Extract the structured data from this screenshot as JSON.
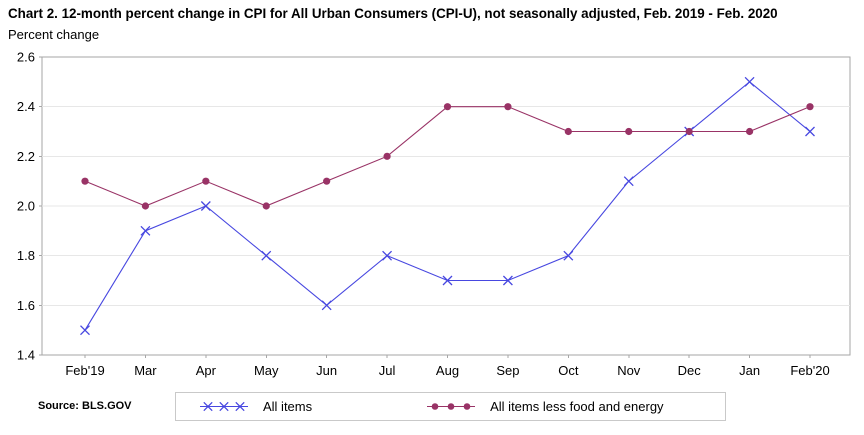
{
  "title": "Chart 2. 12-month percent change in CPI for All Urban Consumers (CPI-U), not seasonally adjusted, Feb. 2019 - Feb. 2020",
  "subtitle": "Percent change",
  "source_label": "Source: BLS.GOV",
  "colors": {
    "all_items": "#4747e0",
    "all_items_less_food_energy": "#993366",
    "gridline": "#e7e7e7",
    "plot_border": "#a6a6a6",
    "tick": "#a6a6a6",
    "text": "#000000",
    "legend_border": "#c9c9c9"
  },
  "chart_data": {
    "type": "line",
    "title": "Chart 2. 12-month percent change in CPI for All Urban Consumers (CPI-U), not seasonally adjusted, Feb. 2019 - Feb. 2020",
    "ylabel": "Percent change",
    "xlabel": "",
    "categories": [
      "Feb'19",
      "Mar",
      "Apr",
      "May",
      "Jun",
      "Jul",
      "Aug",
      "Sep",
      "Oct",
      "Nov",
      "Dec",
      "Jan",
      "Feb'20"
    ],
    "series": [
      {
        "name": "All items",
        "marker": "x",
        "color": "#4747e0",
        "values": [
          1.5,
          1.9,
          2.0,
          1.8,
          1.6,
          1.8,
          1.7,
          1.7,
          1.8,
          2.1,
          2.3,
          2.5,
          2.3
        ]
      },
      {
        "name": "All items less food and energy",
        "marker": "circle",
        "color": "#993366",
        "values": [
          2.1,
          2.0,
          2.1,
          2.0,
          2.1,
          2.2,
          2.4,
          2.4,
          2.3,
          2.3,
          2.3,
          2.3,
          2.4
        ]
      }
    ],
    "ylim": [
      1.4,
      2.6
    ],
    "ytick_step": 0.2,
    "yticks": [
      1.4,
      1.6,
      1.8,
      2.0,
      2.2,
      2.4,
      2.6
    ],
    "grid": true,
    "legend_position": "bottom"
  },
  "legend": {
    "items": [
      {
        "label": "All items"
      },
      {
        "label": "All items less food and energy"
      }
    ]
  }
}
